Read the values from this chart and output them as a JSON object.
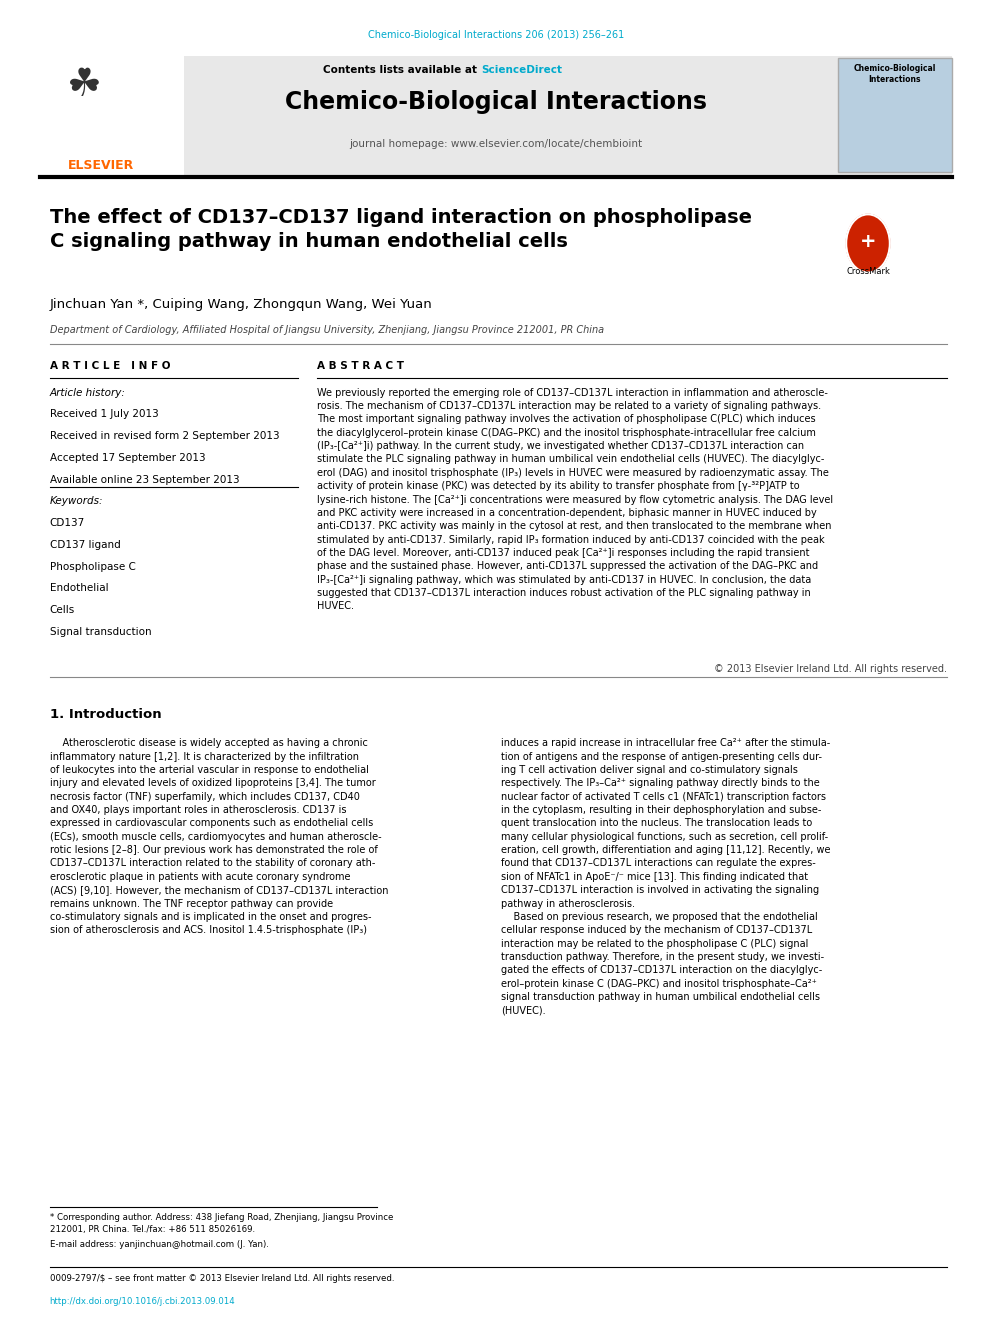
{
  "page_width": 9.92,
  "page_height": 13.23,
  "dpi": 100,
  "bg_color": "#ffffff",
  "journal_ref": "Chemico-Biological Interactions 206 (2013) 256–261",
  "journal_ref_color": "#00aacc",
  "contents_text": "Contents lists available at ",
  "sciencedirect_text": "ScienceDirect",
  "sciencedirect_color": "#00aacc",
  "journal_title": "Chemico-Biological Interactions",
  "journal_homepage": "journal homepage: www.elsevier.com/locate/chembioint",
  "header_bg": "#e8e8e8",
  "paper_title": "The effect of CD137–CD137 ligand interaction on phospholipase\nC signaling pathway in human endothelial cells",
  "authors": "Jinchuan Yan *, Cuiping Wang, Zhongqun Wang, Wei Yuan",
  "affiliation": "Department of Cardiology, Affiliated Hospital of Jiangsu University, Zhenjiang, Jiangsu Province 212001, PR China",
  "article_info_title": "A R T I C L E   I N F O",
  "article_history_title": "Article history:",
  "received1": "Received 1 July 2013",
  "received2": "Received in revised form 2 September 2013",
  "accepted": "Accepted 17 September 2013",
  "available": "Available online 23 September 2013",
  "keywords_title": "Keywords:",
  "keywords": [
    "CD137",
    "CD137 ligand",
    "Phospholipase C",
    "Endothelial",
    "Cells",
    "Signal transduction"
  ],
  "abstract_title": "A B S T R A C T",
  "abstract_text": "We previously reported the emerging role of CD137–CD137L interaction in inflammation and atheroscle-\nrosis. The mechanism of CD137–CD137L interaction may be related to a variety of signaling pathways.\nThe most important signaling pathway involves the activation of phospholipase C(PLC) which induces\nthe diacylglycerol–protein kinase C(DAG–PKC) and the inositol trisphosphate-intracellular free calcium\n(IP₃-[Ca²⁺]i) pathway. In the current study, we investigated whether CD137–CD137L interaction can\nstimulate the PLC signaling pathway in human umbilical vein endothelial cells (HUVEC). The diacylglyc-\nerol (DAG) and inositol trisphosphate (IP₃) levels in HUVEC were measured by radioenzymatic assay. The\nactivity of protein kinase (PKC) was detected by its ability to transfer phosphate from [γ-³²P]ATP to\nlysine-rich histone. The [Ca²⁺]i concentrations were measured by flow cytometric analysis. The DAG level\nand PKC activity were increased in a concentration-dependent, biphasic manner in HUVEC induced by\nanti-CD137. PKC activity was mainly in the cytosol at rest, and then translocated to the membrane when\nstimulated by anti-CD137. Similarly, rapid IP₃ formation induced by anti-CD137 coincided with the peak\nof the DAG level. Moreover, anti-CD137 induced peak [Ca²⁺]i responses including the rapid transient\nphase and the sustained phase. However, anti-CD137L suppressed the activation of the DAG–PKC and\nIP₃-[Ca²⁺]i signaling pathway, which was stimulated by anti-CD137 in HUVEC. In conclusion, the data\nsuggested that CD137–CD137L interaction induces robust activation of the PLC signaling pathway in\nHUVEC.",
  "copyright": "© 2013 Elsevier Ireland Ltd. All rights reserved.",
  "section1_title": "1. Introduction",
  "intro_col1": "    Atherosclerotic disease is widely accepted as having a chronic\ninflammatory nature [1,2]. It is characterized by the infiltration\nof leukocytes into the arterial vascular in response to endothelial\ninjury and elevated levels of oxidized lipoproteins [3,4]. The tumor\nnecrosis factor (TNF) superfamily, which includes CD137, CD40\nand OX40, plays important roles in atherosclerosis. CD137 is\nexpressed in cardiovascular components such as endothelial cells\n(ECs), smooth muscle cells, cardiomyocytes and human atheroscle-\nrotic lesions [2–8]. Our previous work has demonstrated the role of\nCD137–CD137L interaction related to the stability of coronary ath-\nerosclerotic plaque in patients with acute coronary syndrome\n(ACS) [9,10]. However, the mechanism of CD137–CD137L interaction\nremains unknown. The TNF receptor pathway can provide\nco-stimulatory signals and is implicated in the onset and progres-\nsion of atherosclerosis and ACS. Inositol 1.4.5-trisphosphate (IP₃)",
  "intro_col2": "induces a rapid increase in intracellular free Ca²⁺ after the stimula-\ntion of antigens and the response of antigen-presenting cells dur-\ning T cell activation deliver signal and co-stimulatory signals\nrespectively. The IP₃–Ca²⁺ signaling pathway directly binds to the\nnuclear factor of activated T cells c1 (NFATc1) transcription factors\nin the cytoplasm, resulting in their dephosphorylation and subse-\nquent translocation into the nucleus. The translocation leads to\nmany cellular physiological functions, such as secretion, cell prolif-\neration, cell growth, differentiation and aging [11,12]. Recently, we\nfound that CD137–CD137L interactions can regulate the expres-\nsion of NFATc1 in ApoE⁻/⁻ mice [13]. This finding indicated that\nCD137–CD137L interaction is involved in activating the signaling\npathway in atherosclerosis.\n    Based on previous research, we proposed that the endothelial\ncellular response induced by the mechanism of CD137–CD137L\ninteraction may be related to the phospholipase C (PLC) signal\ntransduction pathway. Therefore, in the present study, we investi-\ngated the effects of CD137–CD137L interaction on the diacylglyc-\nerol–protein kinase C (DAG–PKC) and inositol trisphosphate–Ca²⁺\nsignal transduction pathway in human umbilical endothelial cells\n(HUVEC).",
  "footnote1": "* Corresponding author. Address: 438 Jiefang Road, Zhenjiang, Jiangsu Province\n212001, PR China. Tel./fax: +86 511 85026169.",
  "footnote2": "E-mail address: yanjinchuan@hotmail.com (J. Yan).",
  "footnote3": "0009-2797/$ – see front matter © 2013 Elsevier Ireland Ltd. All rights reserved.",
  "footnote4_text": "http://dx.doi.org/10.1016/j.cbi.2013.09.014",
  "footnote4_color": "#00aacc",
  "elsevier_color": "#FF6600",
  "separator_color": "#000000",
  "text_color": "#000000"
}
